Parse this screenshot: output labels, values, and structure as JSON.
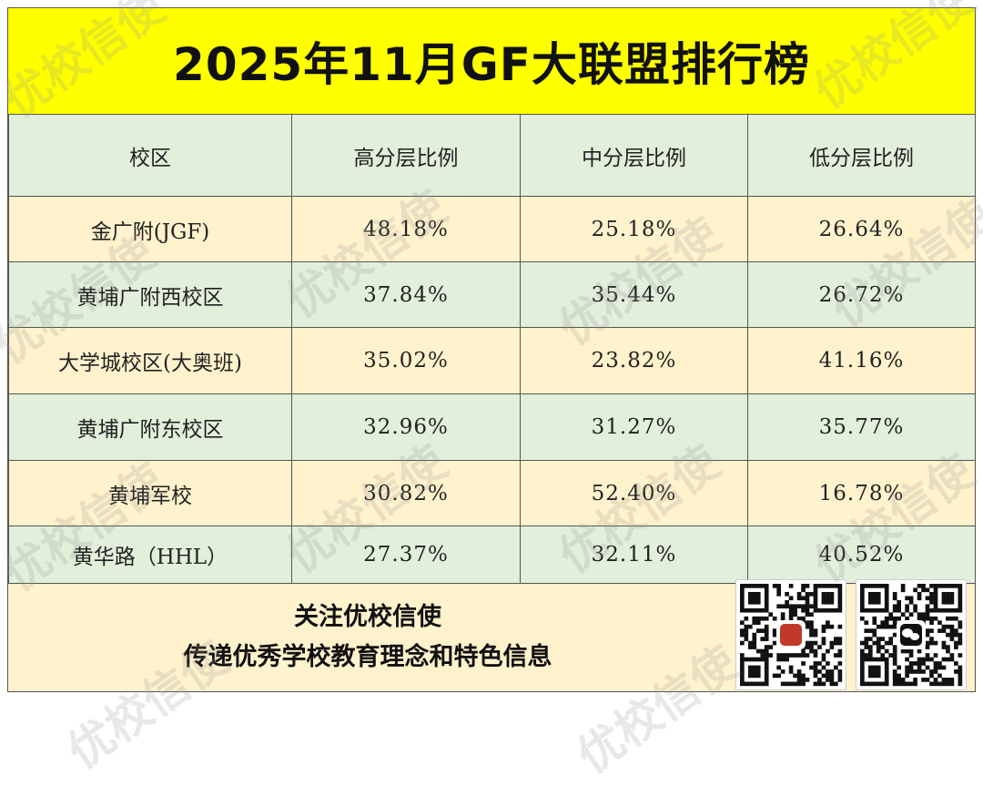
{
  "title": "2025年11月GF大联盟排行榜",
  "table": {
    "headers": [
      "校区",
      "高分层比例",
      "中分层比例",
      "低分层比例"
    ],
    "rows": [
      [
        "金广附(JGF)",
        "48.18%",
        "25.18%",
        "26.64%"
      ],
      [
        "黄埔广附西校区",
        "37.84%",
        "35.44%",
        "26.72%"
      ],
      [
        "大学城校区(大奥班)",
        "35.02%",
        "23.82%",
        "41.16%"
      ],
      [
        "黄埔广附东校区",
        "32.96%",
        "31.27%",
        "35.77%"
      ],
      [
        "黄埔军校",
        "30.82%",
        "52.40%",
        "16.78%"
      ],
      [
        "黄华路（HHL）",
        "27.37%",
        "32.11%",
        "40.52%"
      ]
    ]
  },
  "footer": {
    "line1": "关注优校信使",
    "line2": "传递优秀学校教育理念和特色信息"
  },
  "watermark": "优校信使",
  "colors": {
    "title_bg": "#ffff00",
    "header_bg": "#e2efda",
    "row_odd_bg": "#fff2cc",
    "row_even_bg": "#e2efda"
  }
}
